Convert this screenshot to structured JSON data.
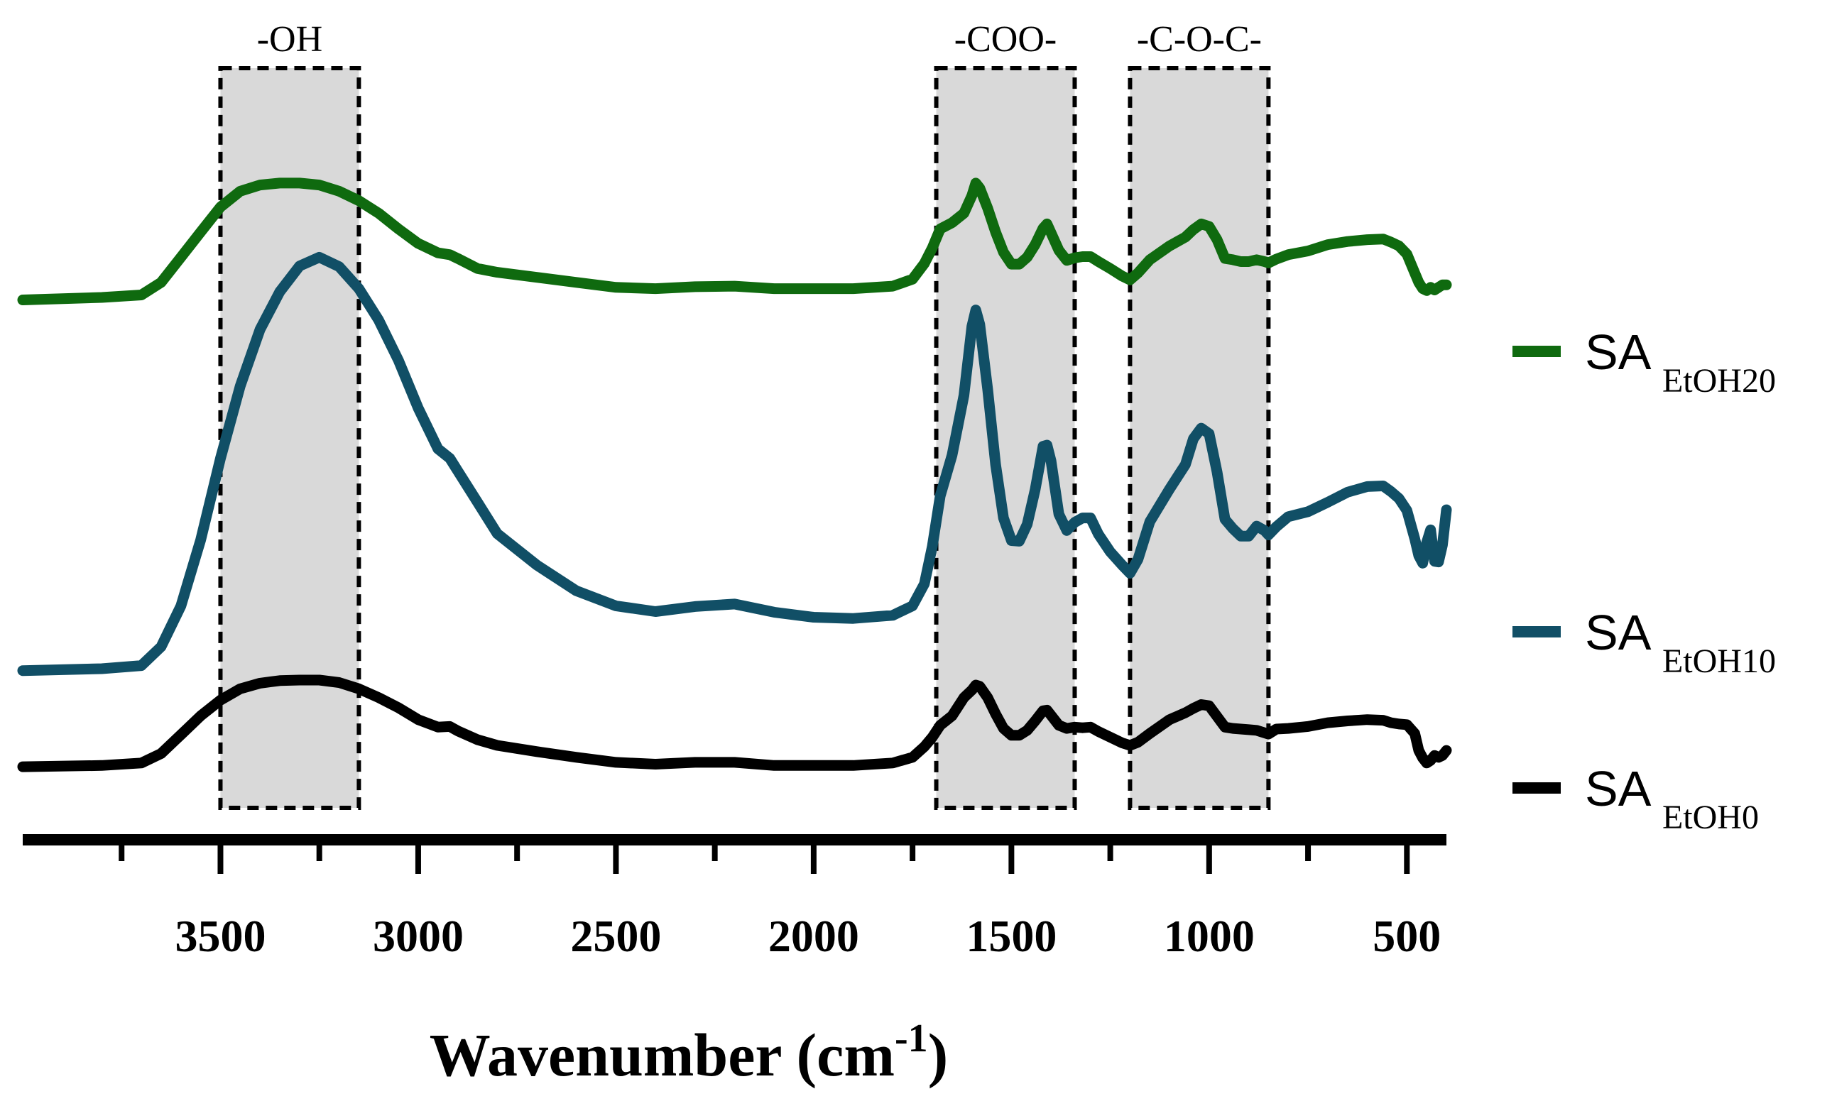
{
  "chart_data": {
    "type": "line",
    "title": "",
    "xlabel": "Wavenumber (cm",
    "xlabel_superscript": "-1",
    "ylabel": "",
    "x_reversed": true,
    "xlim": [
      4000,
      400
    ],
    "xticks_major": [
      3500,
      3000,
      2500,
      2000,
      1500,
      1000,
      500
    ],
    "xtick_labels": [
      "3500",
      "3000",
      "2500",
      "2000",
      "1500",
      "1000",
      "500"
    ],
    "xticks_minor": [
      3750,
      3250,
      2750,
      2250,
      1750,
      1250,
      750
    ],
    "ylim": [
      0,
      100
    ],
    "grid": false,
    "legend_position": "right",
    "bands": [
      {
        "label": "-OH",
        "x_start": 3500,
        "x_end": 3150
      },
      {
        "label": "-COO-",
        "x_start": 1690,
        "x_end": 1340
      },
      {
        "label": "-C-O-C-",
        "x_start": 1200,
        "x_end": 850
      }
    ],
    "series": [
      {
        "name": "SA",
        "sub": "EtOH20",
        "color": "#0f6a0f",
        "x": [
          4000,
          3800,
          3700,
          3650,
          3600,
          3550,
          3500,
          3450,
          3400,
          3350,
          3300,
          3250,
          3200,
          3150,
          3100,
          3050,
          3000,
          2950,
          2920,
          2900,
          2850,
          2800,
          2700,
          2600,
          2500,
          2400,
          2300,
          2200,
          2100,
          2000,
          1900,
          1800,
          1750,
          1720,
          1700,
          1680,
          1650,
          1620,
          1600,
          1590,
          1580,
          1560,
          1540,
          1520,
          1500,
          1480,
          1460,
          1440,
          1420,
          1410,
          1400,
          1380,
          1360,
          1340,
          1320,
          1300,
          1280,
          1250,
          1220,
          1200,
          1180,
          1150,
          1100,
          1060,
          1040,
          1020,
          1000,
          980,
          960,
          940,
          920,
          900,
          880,
          860,
          850,
          830,
          800,
          750,
          700,
          650,
          600,
          560,
          540,
          520,
          500,
          480,
          470,
          460,
          450,
          440,
          430,
          420,
          410,
          400
        ],
        "y": [
          82.2,
          82.6,
          83,
          85,
          89,
          93,
          97,
          99.5,
          100.5,
          100.8,
          100.8,
          100.5,
          99.5,
          98,
          96,
          93.5,
          91.2,
          89.7,
          89.4,
          88.8,
          87.2,
          86.6,
          85.8,
          85,
          84.2,
          84,
          84.3,
          84.4,
          84,
          84,
          84,
          84.4,
          85.5,
          88,
          90.5,
          93.5,
          94.5,
          96,
          98.8,
          100.8,
          100,
          96.8,
          93,
          89.8,
          87.9,
          87.9,
          89,
          91,
          93.6,
          94.3,
          92.9,
          90.1,
          88.5,
          88.9,
          89.1,
          89.1,
          88.3,
          87.2,
          86,
          85.4,
          86.5,
          88.6,
          90.8,
          92.2,
          93.4,
          94.3,
          93.9,
          91.8,
          88.8,
          88.6,
          88.3,
          88.3,
          88.6,
          88.3,
          88.1,
          88.7,
          89.4,
          90,
          91,
          91.5,
          91.8,
          91.9,
          91.4,
          90.8,
          89.5,
          86.5,
          85,
          84,
          83.7,
          84.2,
          83.8,
          84.2,
          84.6,
          84.6
        ]
      },
      {
        "name": "SA",
        "sub": "EtOH10",
        "color": "#114f66",
        "x": [
          4000,
          3800,
          3700,
          3650,
          3600,
          3550,
          3500,
          3450,
          3400,
          3350,
          3300,
          3250,
          3200,
          3150,
          3100,
          3050,
          3000,
          2950,
          2920,
          2900,
          2850,
          2800,
          2700,
          2600,
          2500,
          2400,
          2300,
          2200,
          2100,
          2000,
          1900,
          1800,
          1750,
          1720,
          1700,
          1680,
          1650,
          1620,
          1600,
          1590,
          1580,
          1560,
          1540,
          1520,
          1500,
          1480,
          1460,
          1440,
          1420,
          1410,
          1400,
          1380,
          1360,
          1340,
          1320,
          1300,
          1280,
          1250,
          1220,
          1200,
          1180,
          1150,
          1100,
          1060,
          1040,
          1020,
          1000,
          980,
          960,
          940,
          920,
          900,
          880,
          860,
          850,
          830,
          800,
          750,
          700,
          650,
          600,
          560,
          540,
          520,
          500,
          480,
          470,
          460,
          450,
          440,
          430,
          420,
          410,
          400
        ],
        "y": [
          23.2,
          23.5,
          24,
          27,
          33.5,
          44,
          57,
          68.5,
          77.5,
          83.5,
          87.6,
          89,
          87.5,
          84,
          79,
          72.6,
          65,
          58.5,
          57,
          55,
          50,
          45,
          40,
          35.9,
          33.5,
          32.6,
          33.4,
          33.8,
          32.5,
          31.7,
          31.5,
          32,
          33.5,
          37,
          43,
          51,
          57.5,
          67,
          78,
          80.6,
          78.3,
          68,
          56,
          47.5,
          43.9,
          43.8,
          46.5,
          52,
          58.9,
          59.1,
          56.6,
          48.1,
          45.5,
          46.8,
          47.5,
          47.5,
          44.9,
          42.1,
          40,
          38.7,
          40.9,
          46.9,
          52.1,
          56,
          60.1,
          61.8,
          60.9,
          54.8,
          47.3,
          45.8,
          44.6,
          44.6,
          46.2,
          45.5,
          44.8,
          46.1,
          47.7,
          48.5,
          50,
          51.6,
          52.5,
          52.6,
          51.7,
          50.6,
          48.7,
          44.2,
          41.5,
          40.3,
          43.6,
          45.6,
          40.6,
          40.5,
          43.2,
          48.8
        ]
      },
      {
        "name": "SA",
        "sub": "EtOH0",
        "color": "#000000",
        "x": [
          4000,
          3800,
          3700,
          3650,
          3600,
          3550,
          3500,
          3450,
          3400,
          3350,
          3300,
          3250,
          3200,
          3150,
          3100,
          3050,
          3000,
          2950,
          2920,
          2900,
          2850,
          2800,
          2700,
          2600,
          2500,
          2400,
          2300,
          2200,
          2100,
          2000,
          1900,
          1800,
          1750,
          1720,
          1700,
          1680,
          1650,
          1620,
          1600,
          1590,
          1580,
          1560,
          1540,
          1520,
          1500,
          1480,
          1460,
          1440,
          1420,
          1410,
          1400,
          1380,
          1360,
          1340,
          1320,
          1300,
          1280,
          1250,
          1220,
          1200,
          1180,
          1150,
          1100,
          1060,
          1040,
          1020,
          1000,
          980,
          960,
          940,
          920,
          900,
          880,
          860,
          850,
          830,
          800,
          750,
          700,
          650,
          600,
          560,
          540,
          520,
          500,
          480,
          470,
          460,
          450,
          440,
          430,
          420,
          410,
          400
        ],
        "y": [
          7.9,
          8.1,
          8.5,
          10,
          13,
          16,
          18.5,
          20.3,
          21.2,
          21.6,
          21.7,
          21.7,
          21.3,
          20.3,
          18.9,
          17.3,
          15.4,
          14.2,
          14.3,
          13.6,
          12.2,
          11.3,
          10.3,
          9.4,
          8.6,
          8.3,
          8.6,
          8.6,
          8.1,
          8.1,
          8.1,
          8.5,
          9.4,
          11.1,
          12.6,
          14.5,
          16,
          18.9,
          20.1,
          20.9,
          20.7,
          18.9,
          16.3,
          14,
          12.9,
          12.9,
          13.7,
          15.2,
          16.8,
          16.9,
          16.1,
          14.5,
          14,
          14.2,
          14.1,
          14.2,
          13.5,
          12.6,
          11.7,
          11.3,
          11.8,
          13.2,
          15.4,
          16.5,
          17.2,
          17.8,
          17.6,
          15.9,
          14.2,
          14,
          13.9,
          13.8,
          13.7,
          13.3,
          13.1,
          13.9,
          14,
          14.3,
          14.9,
          15.2,
          15.4,
          15.3,
          14.9,
          14.7,
          14.6,
          13.2,
          10.5,
          9.3,
          8.5,
          8.9,
          9.7,
          9.4,
          9.7,
          10.5
        ]
      }
    ]
  }
}
